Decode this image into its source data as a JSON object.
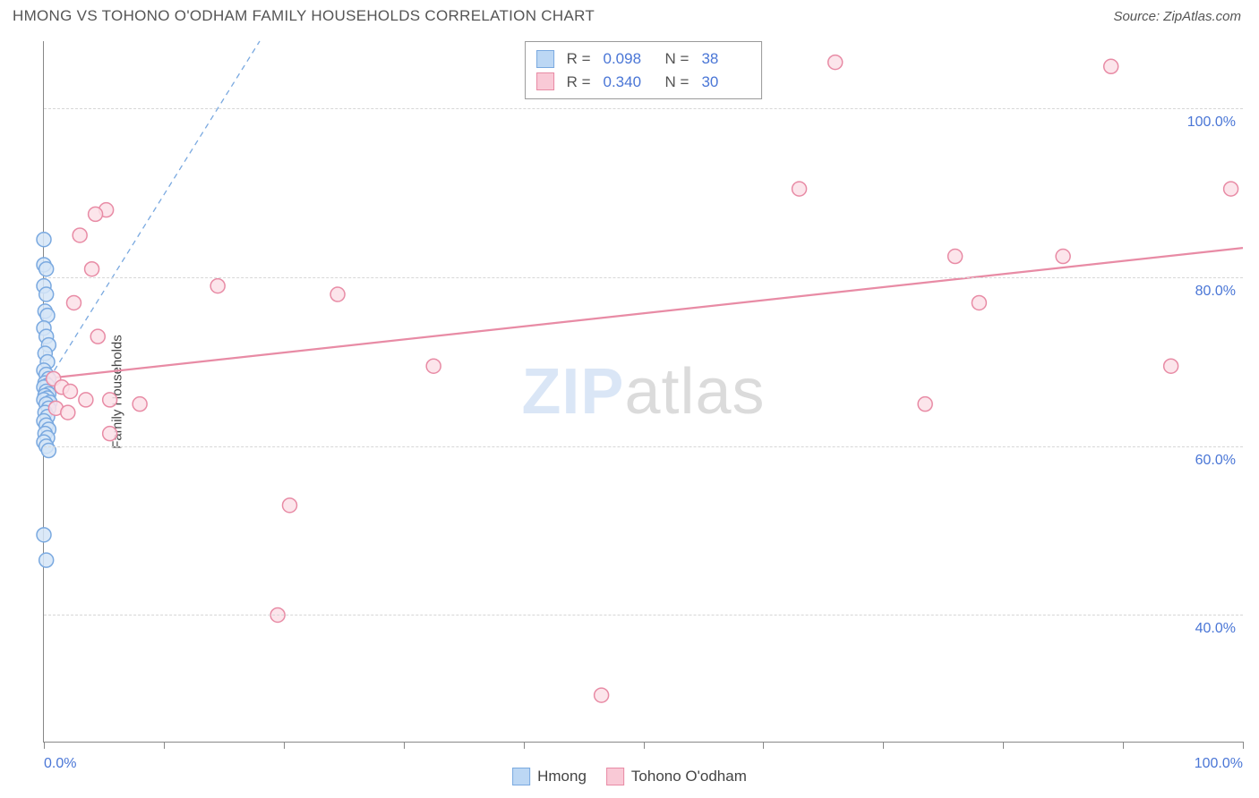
{
  "header": {
    "title": "HMONG VS TOHONO O'ODHAM FAMILY HOUSEHOLDS CORRELATION CHART",
    "source": "Source: ZipAtlas.com"
  },
  "axes": {
    "y_label": "Family Households",
    "x_range": [
      0,
      100
    ],
    "y_range": [
      25,
      108
    ],
    "y_gridlines": [
      40,
      60,
      80,
      100
    ],
    "y_tick_labels": [
      "40.0%",
      "60.0%",
      "80.0%",
      "100.0%"
    ],
    "x_ticks": [
      0,
      10,
      20,
      30,
      40,
      50,
      60,
      70,
      80,
      90,
      100
    ],
    "x_tick_labels": {
      "0": "0.0%",
      "100": "100.0%"
    }
  },
  "watermark": {
    "zip": "ZIP",
    "atlas": "atlas"
  },
  "series_legend": [
    {
      "swatch_fill": "#bcd7f4",
      "swatch_border": "#7aa9e0",
      "r_label": "R =",
      "r_value": "0.098",
      "n_label": "N =",
      "n_value": "38"
    },
    {
      "swatch_fill": "#f9c9d6",
      "swatch_border": "#e88ba5",
      "r_label": "R =",
      "r_value": "0.340",
      "n_label": "N =",
      "n_value": "30"
    }
  ],
  "bottom_legend": [
    {
      "swatch_fill": "#bcd7f4",
      "swatch_border": "#7aa9e0",
      "label": "Hmong"
    },
    {
      "swatch_fill": "#f9c9d6",
      "swatch_border": "#e88ba5",
      "label": "Tohono O'odham"
    }
  ],
  "chart": {
    "type": "scatter",
    "background_color": "#ffffff",
    "grid_color": "#d7d7d7",
    "marker_radius": 8,
    "marker_stroke_width": 1.5,
    "series": [
      {
        "name": "Hmong",
        "fill": "#d5e5f7",
        "stroke": "#7aa9e0",
        "points": [
          [
            0.0,
            84.5
          ],
          [
            0.0,
            81.5
          ],
          [
            0.2,
            81.0
          ],
          [
            0.0,
            79.0
          ],
          [
            0.2,
            78.0
          ],
          [
            0.1,
            76.0
          ],
          [
            0.3,
            75.5
          ],
          [
            0.0,
            74.0
          ],
          [
            0.2,
            73.0
          ],
          [
            0.4,
            72.0
          ],
          [
            0.1,
            71.0
          ],
          [
            0.3,
            70.0
          ],
          [
            0.0,
            69.0
          ],
          [
            0.2,
            68.5
          ],
          [
            0.4,
            68.0
          ],
          [
            0.1,
            67.5
          ],
          [
            0.3,
            67.2
          ],
          [
            0.0,
            67.0
          ],
          [
            0.2,
            66.5
          ],
          [
            0.4,
            66.2
          ],
          [
            0.1,
            66.0
          ],
          [
            0.3,
            65.7
          ],
          [
            0.0,
            65.5
          ],
          [
            0.5,
            65.2
          ],
          [
            0.2,
            65.0
          ],
          [
            0.4,
            64.5
          ],
          [
            0.1,
            64.0
          ],
          [
            0.3,
            63.5
          ],
          [
            0.0,
            63.0
          ],
          [
            0.2,
            62.5
          ],
          [
            0.4,
            62.0
          ],
          [
            0.1,
            61.5
          ],
          [
            0.3,
            61.0
          ],
          [
            0.0,
            60.5
          ],
          [
            0.2,
            60.0
          ],
          [
            0.4,
            59.5
          ],
          [
            0.0,
            49.5
          ],
          [
            0.2,
            46.5
          ]
        ],
        "trend": {
          "x1": 0,
          "y1": 67,
          "x2": 18,
          "y2": 108,
          "dash": "6,5",
          "width": 1.3
        }
      },
      {
        "name": "Tohono O'odham",
        "fill": "#fbe0e8",
        "stroke": "#e88ba5",
        "points": [
          [
            66,
            105.5
          ],
          [
            89,
            105.0
          ],
          [
            63,
            90.5
          ],
          [
            99,
            90.5
          ],
          [
            5.2,
            88.0
          ],
          [
            4.3,
            87.5
          ],
          [
            3.0,
            85.0
          ],
          [
            76,
            82.5
          ],
          [
            85,
            82.5
          ],
          [
            4.0,
            81.0
          ],
          [
            14.5,
            79.0
          ],
          [
            24.5,
            78.0
          ],
          [
            2.5,
            77.0
          ],
          [
            78,
            77.0
          ],
          [
            4.5,
            73.0
          ],
          [
            32.5,
            69.5
          ],
          [
            94,
            69.5
          ],
          [
            0.8,
            68.0
          ],
          [
            1.5,
            67.0
          ],
          [
            2.2,
            66.5
          ],
          [
            3.5,
            65.5
          ],
          [
            5.5,
            65.5
          ],
          [
            8.0,
            65.0
          ],
          [
            73.5,
            65.0
          ],
          [
            1.0,
            64.5
          ],
          [
            2.0,
            64.0
          ],
          [
            5.5,
            61.5
          ],
          [
            20.5,
            53.0
          ],
          [
            19.5,
            40.0
          ],
          [
            46.5,
            30.5
          ]
        ],
        "trend": {
          "x1": 0,
          "y1": 68,
          "x2": 100,
          "y2": 83.5,
          "dash": "none",
          "width": 2.2
        }
      }
    ]
  }
}
